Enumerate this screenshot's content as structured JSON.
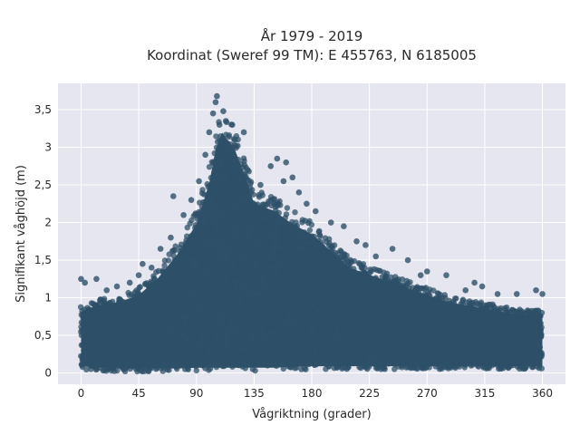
{
  "chart_data": {
    "type": "scatter",
    "title_line1": "År 1979 - 2019",
    "title_line2": "Koordinat (Sweref 99 TM): E 455763, N 6185005",
    "xlabel": "Vågriktning (grader)",
    "ylabel": "Signifikant våghöjd (m)",
    "xlim": [
      -18,
      378
    ],
    "ylim": [
      -0.15,
      3.85
    ],
    "xticks": [
      0,
      45,
      90,
      135,
      180,
      225,
      270,
      315,
      360
    ],
    "xtick_labels": [
      "0",
      "45",
      "90",
      "135",
      "180",
      "225",
      "270",
      "315",
      "360"
    ],
    "yticks": [
      0,
      0.5,
      1,
      1.5,
      2,
      2.5,
      3,
      3.5
    ],
    "ytick_labels": [
      "0",
      "0,5",
      "1",
      "1,5",
      "2",
      "2,5",
      "3",
      "3,5"
    ],
    "grid": true,
    "marker_color": "#2e5068",
    "plot_bgcolor": "#e5e6ef",
    "envelope": {
      "description_x": [
        0,
        15,
        30,
        45,
        60,
        75,
        90,
        100,
        105,
        110,
        120,
        130,
        135,
        150,
        165,
        180,
        195,
        210,
        225,
        240,
        255,
        270,
        285,
        300,
        315,
        330,
        345,
        360
      ],
      "upper_m": [
        0.9,
        1.0,
        1.05,
        1.15,
        1.4,
        1.75,
        2.2,
        2.8,
        3.3,
        3.55,
        3.3,
        2.8,
        2.5,
        2.4,
        2.2,
        2.05,
        1.8,
        1.55,
        1.45,
        1.35,
        1.25,
        1.15,
        1.05,
        1.0,
        0.95,
        0.9,
        0.85,
        0.85
      ],
      "lower_m": [
        0.05,
        0.03,
        0.02,
        0.02,
        0.02,
        0.02,
        0.03,
        0.03,
        0.03,
        0.03,
        0.03,
        0.03,
        0.03,
        0.03,
        0.04,
        0.05,
        0.05,
        0.05,
        0.05,
        0.05,
        0.05,
        0.05,
        0.05,
        0.05,
        0.05,
        0.05,
        0.05,
        0.05
      ]
    },
    "highlighted_points": [
      {
        "x": 0,
        "y": 1.25
      },
      {
        "x": 3,
        "y": 1.2
      },
      {
        "x": 12,
        "y": 1.25
      },
      {
        "x": 20,
        "y": 1.1
      },
      {
        "x": 28,
        "y": 1.15
      },
      {
        "x": 38,
        "y": 1.2
      },
      {
        "x": 45,
        "y": 1.3
      },
      {
        "x": 48,
        "y": 1.45
      },
      {
        "x": 55,
        "y": 1.4
      },
      {
        "x": 62,
        "y": 1.65
      },
      {
        "x": 70,
        "y": 1.8
      },
      {
        "x": 72,
        "y": 2.35
      },
      {
        "x": 80,
        "y": 2.1
      },
      {
        "x": 86,
        "y": 2.3
      },
      {
        "x": 92,
        "y": 2.55
      },
      {
        "x": 97,
        "y": 2.9
      },
      {
        "x": 100,
        "y": 3.2
      },
      {
        "x": 103,
        "y": 3.45
      },
      {
        "x": 105,
        "y": 3.6
      },
      {
        "x": 106,
        "y": 3.68
      },
      {
        "x": 108,
        "y": 3.3
      },
      {
        "x": 111,
        "y": 3.48
      },
      {
        "x": 113,
        "y": 3.35
      },
      {
        "x": 118,
        "y": 3.3
      },
      {
        "x": 120,
        "y": 3.1
      },
      {
        "x": 127,
        "y": 3.2
      },
      {
        "x": 130,
        "y": 2.7
      },
      {
        "x": 140,
        "y": 2.5
      },
      {
        "x": 148,
        "y": 2.75
      },
      {
        "x": 153,
        "y": 2.85
      },
      {
        "x": 158,
        "y": 2.55
      },
      {
        "x": 160,
        "y": 2.8
      },
      {
        "x": 165,
        "y": 2.6
      },
      {
        "x": 170,
        "y": 2.4
      },
      {
        "x": 176,
        "y": 2.25
      },
      {
        "x": 183,
        "y": 2.15
      },
      {
        "x": 195,
        "y": 2.0
      },
      {
        "x": 205,
        "y": 1.95
      },
      {
        "x": 215,
        "y": 1.75
      },
      {
        "x": 222,
        "y": 1.7
      },
      {
        "x": 230,
        "y": 1.55
      },
      {
        "x": 243,
        "y": 1.65
      },
      {
        "x": 255,
        "y": 1.5
      },
      {
        "x": 265,
        "y": 1.3
      },
      {
        "x": 270,
        "y": 1.35
      },
      {
        "x": 285,
        "y": 1.3
      },
      {
        "x": 300,
        "y": 1.1
      },
      {
        "x": 307,
        "y": 1.2
      },
      {
        "x": 313,
        "y": 1.15
      },
      {
        "x": 325,
        "y": 1.05
      },
      {
        "x": 340,
        "y": 1.05
      },
      {
        "x": 355,
        "y": 1.1
      },
      {
        "x": 360,
        "y": 1.05
      }
    ]
  }
}
